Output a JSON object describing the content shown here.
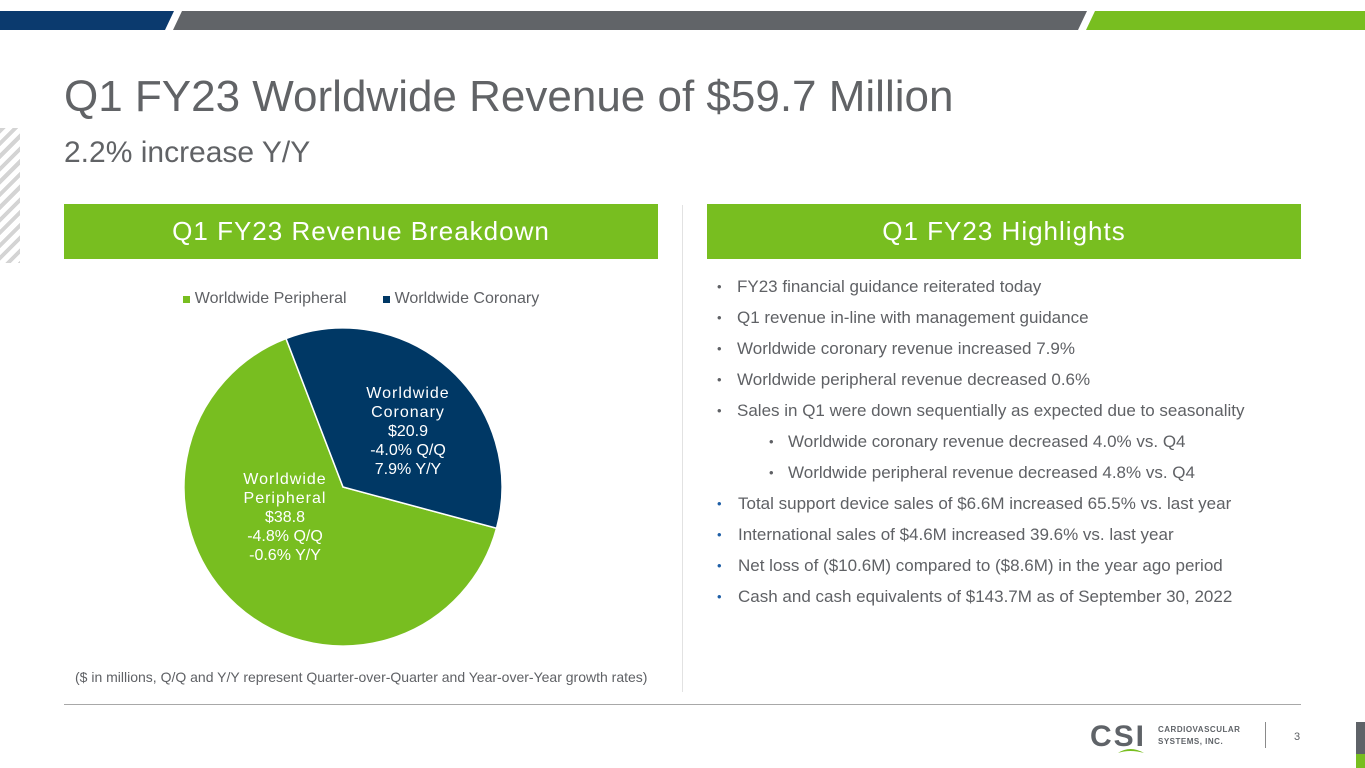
{
  "slide": {
    "title": "Q1 FY23 Worldwide Revenue of $59.7 Million",
    "subtitle": "2.2% increase Y/Y",
    "page_number": "3"
  },
  "left_panel": {
    "header": "Q1 FY23 Revenue Breakdown",
    "footnote": "($ in millions, Q/Q and Y/Y represent Quarter-over-Quarter and Year-over-Year growth rates)"
  },
  "right_panel": {
    "header": "Q1 FY23 Highlights",
    "items": [
      {
        "text": "FY23 financial guidance reiterated today",
        "level": 1
      },
      {
        "text": "Q1 revenue in-line with management guidance",
        "level": 1
      },
      {
        "text": "Worldwide coronary revenue increased 7.9%",
        "level": 1
      },
      {
        "text": "Worldwide peripheral revenue decreased 0.6%",
        "level": 1
      },
      {
        "text": "Sales in Q1 were down sequentially as expected due to seasonality",
        "level": 1
      },
      {
        "text": "Worldwide coronary revenue decreased 4.0% vs. Q4",
        "level": 2
      },
      {
        "text": "Worldwide peripheral revenue decreased 4.8% vs. Q4",
        "level": 2
      },
      {
        "text": "Total support device sales of $6.6M increased 65.5% vs. last year",
        "level": 1
      },
      {
        "text": "International sales of $4.6M increased 39.6% vs. last year",
        "level": 1
      },
      {
        "text": "Net loss of ($10.6M) compared to ($8.6M) in the year ago period",
        "level": 1
      },
      {
        "text": "Cash and cash equivalents of $143.7M as of September 30, 2022",
        "level": 1
      }
    ],
    "bullet_char": "•"
  },
  "logo": {
    "mark": "CSI",
    "line1": "CARDIOVASCULAR",
    "line2": "SYSTEMS, INC."
  },
  "colors": {
    "brand_green": "#78be20",
    "brand_navy": "#003865",
    "text_gray": "#616366",
    "bar_gray": "#616468",
    "bar_blue": "#0b3a6e"
  },
  "chart_data": {
    "type": "pie",
    "legend": "top",
    "categories": [
      "Worldwide Peripheral",
      "Worldwide Coronary"
    ],
    "values": [
      38.8,
      20.9
    ],
    "colors": [
      "#78be20",
      "#003865"
    ],
    "labels": [
      {
        "name_line1": "Worldwide",
        "name_line2": "Peripheral",
        "value": "$38.8",
        "qq": "-4.8% Q/Q",
        "yy": "-0.6% Y/Y"
      },
      {
        "name_line1": "Worldwide",
        "name_line2": "Coronary",
        "value": "$20.9",
        "qq": "-4.0% Q/Q",
        "yy": "7.9% Y/Y"
      }
    ]
  }
}
